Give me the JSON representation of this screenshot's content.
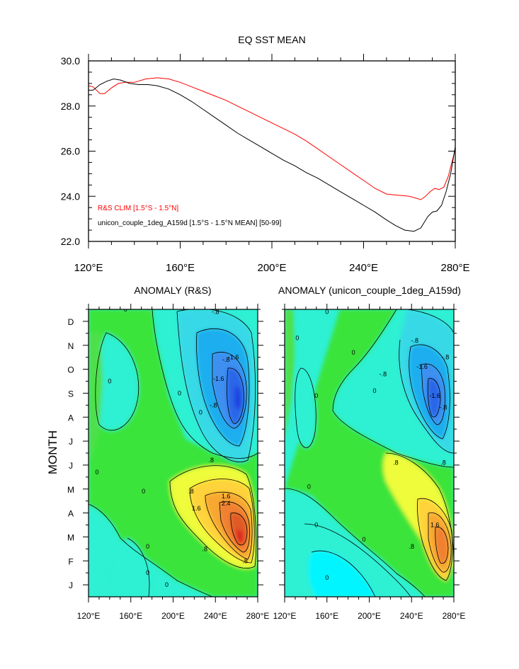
{
  "chart_data": [
    {
      "type": "line",
      "title": "EQ SST MEAN",
      "xlabel": "",
      "ylabel": "",
      "xlim": [
        120,
        280
      ],
      "ylim": [
        22.0,
        30.0
      ],
      "x_ticks": [
        {
          "value": 120,
          "label": "120°E"
        },
        {
          "value": 160,
          "label": "160°E"
        },
        {
          "value": 200,
          "label": "200°E"
        },
        {
          "value": 240,
          "label": "240°E"
        },
        {
          "value": 280,
          "label": "280°E"
        }
      ],
      "y_ticks": [
        {
          "value": 22,
          "label": "22.0"
        },
        {
          "value": 24,
          "label": "24.0"
        },
        {
          "value": 26,
          "label": "26.0"
        },
        {
          "value": 28,
          "label": "28.0"
        },
        {
          "value": 30,
          "label": "30.0"
        }
      ],
      "legend_placement": "bottom-left",
      "series": [
        {
          "name": "R&S CLIM [1.5°S - 1.5°N]",
          "color": "#ff0000",
          "x": [
            120,
            122,
            125,
            127,
            130,
            133,
            136,
            140,
            145,
            150,
            155,
            160,
            165,
            170,
            175,
            180,
            185,
            190,
            195,
            200,
            205,
            210,
            215,
            220,
            225,
            230,
            235,
            240,
            245,
            250,
            255,
            260,
            265,
            267,
            269,
            271,
            273,
            275,
            277,
            279,
            280
          ],
          "y": [
            28.9,
            28.85,
            28.55,
            28.55,
            28.8,
            29.0,
            29.05,
            29.05,
            29.2,
            29.25,
            29.2,
            29.05,
            28.85,
            28.65,
            28.45,
            28.25,
            28.0,
            27.75,
            27.5,
            27.25,
            27.0,
            26.75,
            26.45,
            26.1,
            25.75,
            25.4,
            25.05,
            24.7,
            24.35,
            24.1,
            24.05,
            24.0,
            23.85,
            24.0,
            24.2,
            24.35,
            24.3,
            24.4,
            24.9,
            25.7,
            26.1
          ]
        },
        {
          "name": "unicon_couple_1deg_A159d [1.5°S - 1.5°N MEAN] [50-99]",
          "color": "#000000",
          "x": [
            120,
            122,
            125,
            128,
            131,
            134,
            138,
            142,
            146,
            150,
            155,
            160,
            165,
            170,
            175,
            180,
            185,
            190,
            195,
            200,
            205,
            210,
            215,
            220,
            225,
            230,
            235,
            240,
            245,
            250,
            254,
            258,
            262,
            265,
            268,
            270,
            272,
            274,
            276,
            278,
            280
          ],
          "y": [
            28.7,
            28.7,
            28.95,
            29.1,
            29.2,
            29.15,
            29.0,
            28.95,
            28.95,
            28.9,
            28.75,
            28.5,
            28.2,
            27.85,
            27.5,
            27.15,
            26.8,
            26.5,
            26.2,
            25.9,
            25.6,
            25.35,
            25.05,
            24.8,
            24.5,
            24.2,
            23.9,
            23.6,
            23.3,
            22.95,
            22.7,
            22.5,
            22.45,
            22.6,
            23.1,
            23.3,
            23.35,
            23.6,
            24.2,
            25.0,
            26.2
          ]
        }
      ]
    },
    {
      "type": "heatmap",
      "title": "ANOMALY (R&S)",
      "ylabel": "MONTH",
      "xlabel": "",
      "xlim": [
        120,
        280
      ],
      "x_ticks": [
        "120°E",
        "160°E",
        "200°E",
        "240°E",
        "280°E"
      ],
      "months": [
        "J",
        "F",
        "M",
        "A",
        "M",
        "J",
        "J",
        "A",
        "S",
        "O",
        "N",
        "D"
      ],
      "contour_labels": [
        {
          "text": "0",
          "x": 155,
          "y": 12
        },
        {
          "text": "0",
          "x": 140,
          "y": 9
        },
        {
          "text": "0",
          "x": 128,
          "y": 5.2
        },
        {
          "text": "0",
          "x": 172,
          "y": 4.4
        },
        {
          "text": "0",
          "x": 176,
          "y": 2.1
        },
        {
          "text": "0",
          "x": 176,
          "y": 1.0
        },
        {
          "text": "0",
          "x": 194,
          "y": 0.5
        },
        {
          "text": "0",
          "x": 206,
          "y": 8.5
        },
        {
          "text": "0",
          "x": 226,
          "y": 7.7
        },
        {
          "text": "-.8",
          "x": 240,
          "y": 11.9
        },
        {
          "text": "-.8",
          "x": 250,
          "y": 9.9
        },
        {
          "text": "-1.6",
          "x": 257,
          "y": 10.0
        },
        {
          "text": "-1.6",
          "x": 243,
          "y": 9.1
        },
        {
          "text": "-.8",
          "x": 238,
          "y": 8.0
        },
        {
          "text": ".8",
          "x": 236,
          "y": 5.7
        },
        {
          "text": ".8",
          "x": 217,
          "y": 4.4
        },
        {
          "text": "1.6",
          "x": 222,
          "y": 3.7
        },
        {
          "text": "2.4",
          "x": 250,
          "y": 3.9
        },
        {
          "text": "1.6",
          "x": 250,
          "y": 4.2
        },
        {
          "text": ".8",
          "x": 230,
          "y": 2.0
        },
        {
          "text": ".8",
          "x": 268,
          "y": 1.5
        }
      ]
    },
    {
      "type": "heatmap",
      "title": "ANOMALY (unicon_couple_1deg_A159d)",
      "xlabel": "",
      "xlim": [
        120,
        280
      ],
      "x_ticks": [
        "120°E",
        "160°E",
        "200°E",
        "240°E",
        "280°E"
      ],
      "contour_labels": [
        {
          "text": "0",
          "x": 160,
          "y": 11.9
        },
        {
          "text": "0",
          "x": 132,
          "y": 10.8
        },
        {
          "text": "0",
          "x": 185,
          "y": 10.2
        },
        {
          "text": "0",
          "x": 150,
          "y": 8.4
        },
        {
          "text": "0",
          "x": 205,
          "y": 8.6
        },
        {
          "text": "0",
          "x": 143,
          "y": 4.6
        },
        {
          "text": "0",
          "x": 150,
          "y": 3.0
        },
        {
          "text": "0",
          "x": 195,
          "y": 2.4
        },
        {
          "text": "0",
          "x": 160,
          "y": 0.8
        },
        {
          "text": "-.8",
          "x": 243,
          "y": 10.7
        },
        {
          "text": "-.8",
          "x": 272,
          "y": 10.0
        },
        {
          "text": "-1.6",
          "x": 250,
          "y": 9.6
        },
        {
          "text": "-.8",
          "x": 213,
          "y": 9.3
        },
        {
          "text": "-1.6",
          "x": 262,
          "y": 8.4
        },
        {
          "text": "-.8",
          "x": 270,
          "y": 7.9
        },
        {
          "text": ".8",
          "x": 225,
          "y": 5.6
        },
        {
          "text": ".8",
          "x": 270,
          "y": 5.6
        },
        {
          "text": "1.6",
          "x": 262,
          "y": 3.0
        },
        {
          "text": ".8",
          "x": 240,
          "y": 2.1
        }
      ]
    }
  ]
}
